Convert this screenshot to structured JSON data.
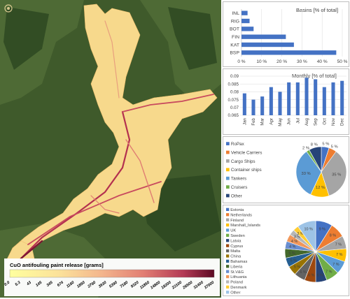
{
  "map": {
    "legend_title": "CuO antifouling paint release [grams]",
    "legend_ticks": [
      "0.0",
      "5.3",
      "43",
      "145",
      "345",
      "674",
      "1160",
      "1850",
      "2760",
      "3930",
      "5390",
      "7180",
      "9320",
      "11850",
      "14800",
      "18200",
      "22100",
      "26500",
      "31400",
      "37000"
    ]
  },
  "chart_data": [
    {
      "type": "bar",
      "orientation": "horizontal",
      "title": "Basins [% of total]",
      "categories": [
        "INL",
        "RIG",
        "BOT",
        "FIN",
        "KAT",
        "BSP"
      ],
      "values": [
        3,
        4,
        6,
        22,
        26,
        47
      ],
      "xlim": [
        0,
        50
      ],
      "x_ticks": [
        "0 %",
        "10 %",
        "20 %",
        "30 %",
        "40 %",
        "50 %"
      ],
      "colors": {
        "bar": "#4472c4"
      }
    },
    {
      "type": "bar",
      "title": "Monthly [% of total]",
      "categories": [
        "Jan",
        "Feb",
        "Mar",
        "Apr",
        "May",
        "Jun",
        "Jul",
        "Aug",
        "Sep",
        "Oct",
        "Nov",
        "Dec"
      ],
      "values": [
        0.079,
        0.075,
        0.077,
        0.083,
        0.08,
        0.086,
        0.086,
        0.089,
        0.088,
        0.083,
        0.086,
        0.087
      ],
      "ylim": [
        0.065,
        0.09
      ],
      "y_ticks": [
        "0.09",
        "0.085",
        "0.08",
        "0.075",
        "0.07",
        "0.065"
      ],
      "colors": {
        "bar": "#4472c4"
      }
    },
    {
      "type": "pie",
      "legend": [
        "RoPax",
        "Vehicle Carriers",
        "Cargo Ships",
        "Container ships",
        "Tankers",
        "Cruisers",
        "Other"
      ],
      "values": [
        5,
        5,
        35,
        12,
        33,
        2,
        8
      ],
      "labels": [
        "5 %",
        "5 %",
        "35 %",
        "12 %",
        "33 %",
        "2 %",
        "8 %"
      ],
      "colors": [
        "#4472c4",
        "#ed7d31",
        "#a5a5a5",
        "#ffc000",
        "#5b9bd5",
        "#70ad47",
        "#264478"
      ]
    },
    {
      "type": "pie",
      "legend": [
        "Estonia",
        "Netherlands",
        "Finland",
        "Marshall_Islands",
        "UK",
        "Sweden",
        "Latvia",
        "Cyprus",
        "Malta",
        "China",
        "Bahamas",
        "Liberia",
        "St.V&G",
        "Lithuania",
        "Poland",
        "Denmark",
        "Other"
      ],
      "values": [
        9,
        8,
        7,
        7,
        7,
        7,
        6,
        6,
        6,
        5,
        5,
        5,
        4,
        4,
        3,
        3,
        10
      ],
      "labels": [
        "9 %",
        "8 %",
        "7 %",
        "7 %",
        "7 %",
        "7 %",
        "6 %",
        "6 %",
        "6 %",
        "5 %",
        "5 %",
        "5 %",
        "4 %",
        "4 %",
        "3 %",
        "3 %",
        "10 %"
      ],
      "colors": [
        "#4472c4",
        "#ed7d31",
        "#a5a5a5",
        "#ffc000",
        "#5b9bd5",
        "#70ad47",
        "#264478",
        "#9e480e",
        "#636363",
        "#997300",
        "#255e91",
        "#43682b",
        "#698ed0",
        "#f1975a",
        "#b7b7b7",
        "#ffcd33",
        "#9dc3e6"
      ]
    }
  ]
}
